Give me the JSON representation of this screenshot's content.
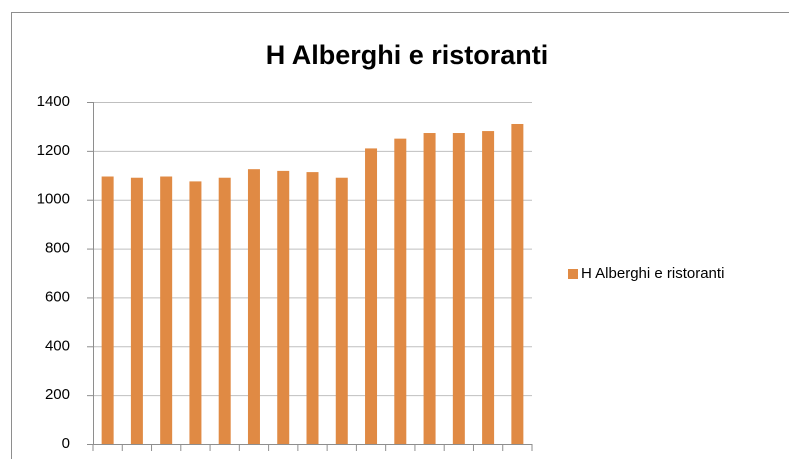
{
  "chart_data": {
    "type": "bar",
    "title": "H Alberghi e ristoranti",
    "categories": [
      null,
      null,
      null,
      null,
      null,
      null,
      null,
      null,
      null,
      null,
      null,
      null,
      null,
      null,
      null
    ],
    "series": [
      {
        "name": "H Alberghi e ristoranti",
        "color": "#e08a44",
        "values": [
          1095,
          1090,
          1095,
          1075,
          1090,
          1125,
          1118,
          1113,
          1090,
          1210,
          1250,
          1273,
          1273,
          1281,
          1310
        ]
      }
    ],
    "ylim": [
      0,
      1400
    ],
    "yticks": [
      0,
      200,
      400,
      600,
      800,
      1000,
      1200,
      1400
    ],
    "grid": true,
    "legend": "right"
  }
}
